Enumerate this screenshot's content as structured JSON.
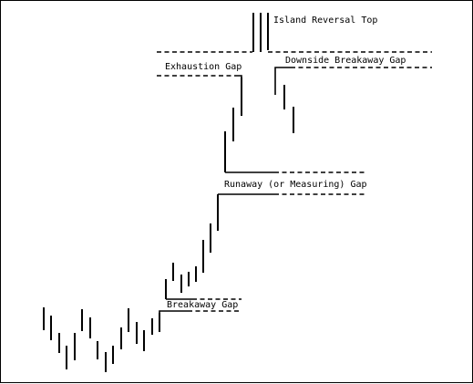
{
  "labels": {
    "island_reversal_top": "Island Reversal Top",
    "exhaustion_gap": "Exhaustion Gap",
    "downside_breakaway_gap": "Downside Breakaway Gap",
    "runaway_gap": "Runaway (or Measuring) Gap",
    "breakaway_gap": "Breakaway Gap"
  },
  "colors": {
    "ink": "#000000",
    "background": "#ffffff"
  }
}
